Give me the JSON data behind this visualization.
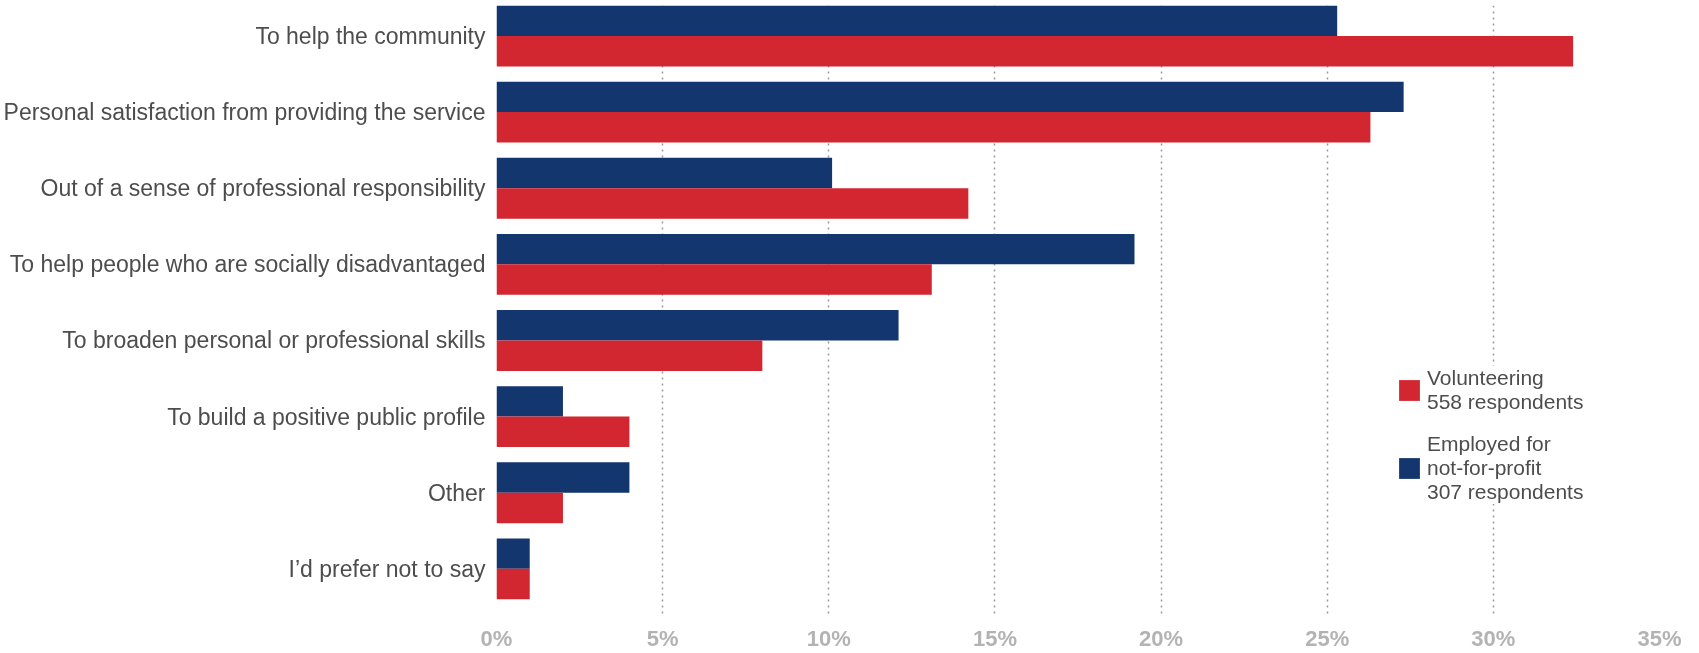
{
  "chart_data": {
    "type": "bar",
    "orientation": "horizontal",
    "categories": [
      "To help the community",
      "Personal satisfaction from providing the service",
      "Out of a sense of professional responsibility",
      "To help people who are socially disadvantaged",
      "To broaden personal or professional skills",
      "To build a positive public profile",
      "Other",
      "I’d prefer not to say"
    ],
    "series": [
      {
        "name": "Employed for not-for-profit",
        "color": "#14366f",
        "values": [
          25.3,
          27.3,
          10.1,
          19.2,
          12.1,
          2.0,
          4.0,
          1.0
        ]
      },
      {
        "name": "Volunteering",
        "color": "#d22630",
        "values": [
          32.4,
          26.3,
          14.2,
          13.1,
          8.0,
          4.0,
          2.0,
          1.0
        ]
      }
    ],
    "annotations": [
      "307 respondents",
      "558 respondents"
    ],
    "xlim": [
      0,
      35
    ],
    "xticks": [
      {
        "value": 0,
        "label": "0%"
      },
      {
        "value": 5,
        "label": "5%"
      },
      {
        "value": 10,
        "label": "10%"
      },
      {
        "value": 15,
        "label": "15%"
      },
      {
        "value": 20,
        "label": "20%"
      },
      {
        "value": 25,
        "label": "25%"
      },
      {
        "value": 30,
        "label": "30%"
      },
      {
        "value": 35,
        "label": "35%"
      }
    ],
    "grid": "x",
    "legend": "right"
  }
}
